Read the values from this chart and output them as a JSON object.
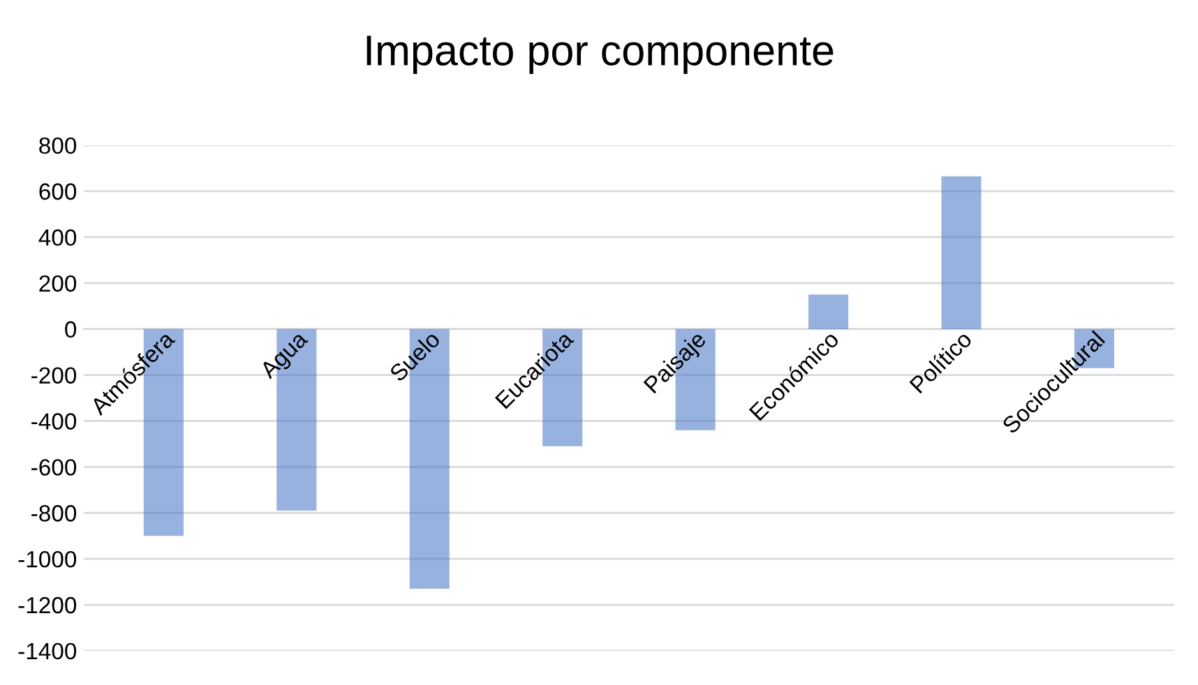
{
  "chart_data": {
    "type": "bar",
    "title": "Impacto por componente",
    "categories": [
      "Atmósfera",
      "Agua",
      "Suelo",
      "Eucariota",
      "Paisaje",
      "Económico",
      "Político",
      "Sociocultural"
    ],
    "values": [
      -900,
      -790,
      -1130,
      -510,
      -440,
      150,
      665,
      -170
    ],
    "color": "#4472c4",
    "ylim": [
      -1400,
      800
    ],
    "yticks": [
      -1400,
      -1200,
      -1000,
      -800,
      -600,
      -400,
      -200,
      0,
      200,
      400,
      600,
      800
    ],
    "grid": "y"
  }
}
